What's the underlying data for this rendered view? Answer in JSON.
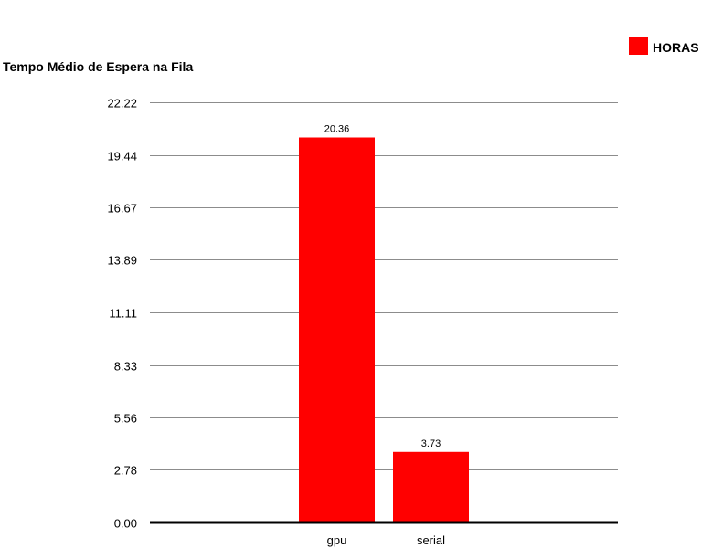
{
  "chart_data": {
    "type": "bar",
    "title": "Tempo Médio de Espera na Fila",
    "xlabel": "",
    "ylabel": "",
    "categories": [
      "gpu",
      "serial"
    ],
    "series": [
      {
        "name": "HORAS",
        "values": [
          20.36,
          3.73
        ],
        "data_labels": [
          "20.36",
          "3.73"
        ],
        "color": "#ff0000"
      }
    ],
    "ylim": [
      0,
      22.22
    ],
    "yticks": [
      0.0,
      2.78,
      5.56,
      8.33,
      11.11,
      13.89,
      16.67,
      19.44,
      22.22
    ],
    "ytick_labels": [
      "0.00",
      "2.78",
      "5.56",
      "8.33",
      "11.11",
      "13.89",
      "16.67",
      "19.44",
      "22.22"
    ],
    "grid": true,
    "legend_position": "top-right"
  }
}
